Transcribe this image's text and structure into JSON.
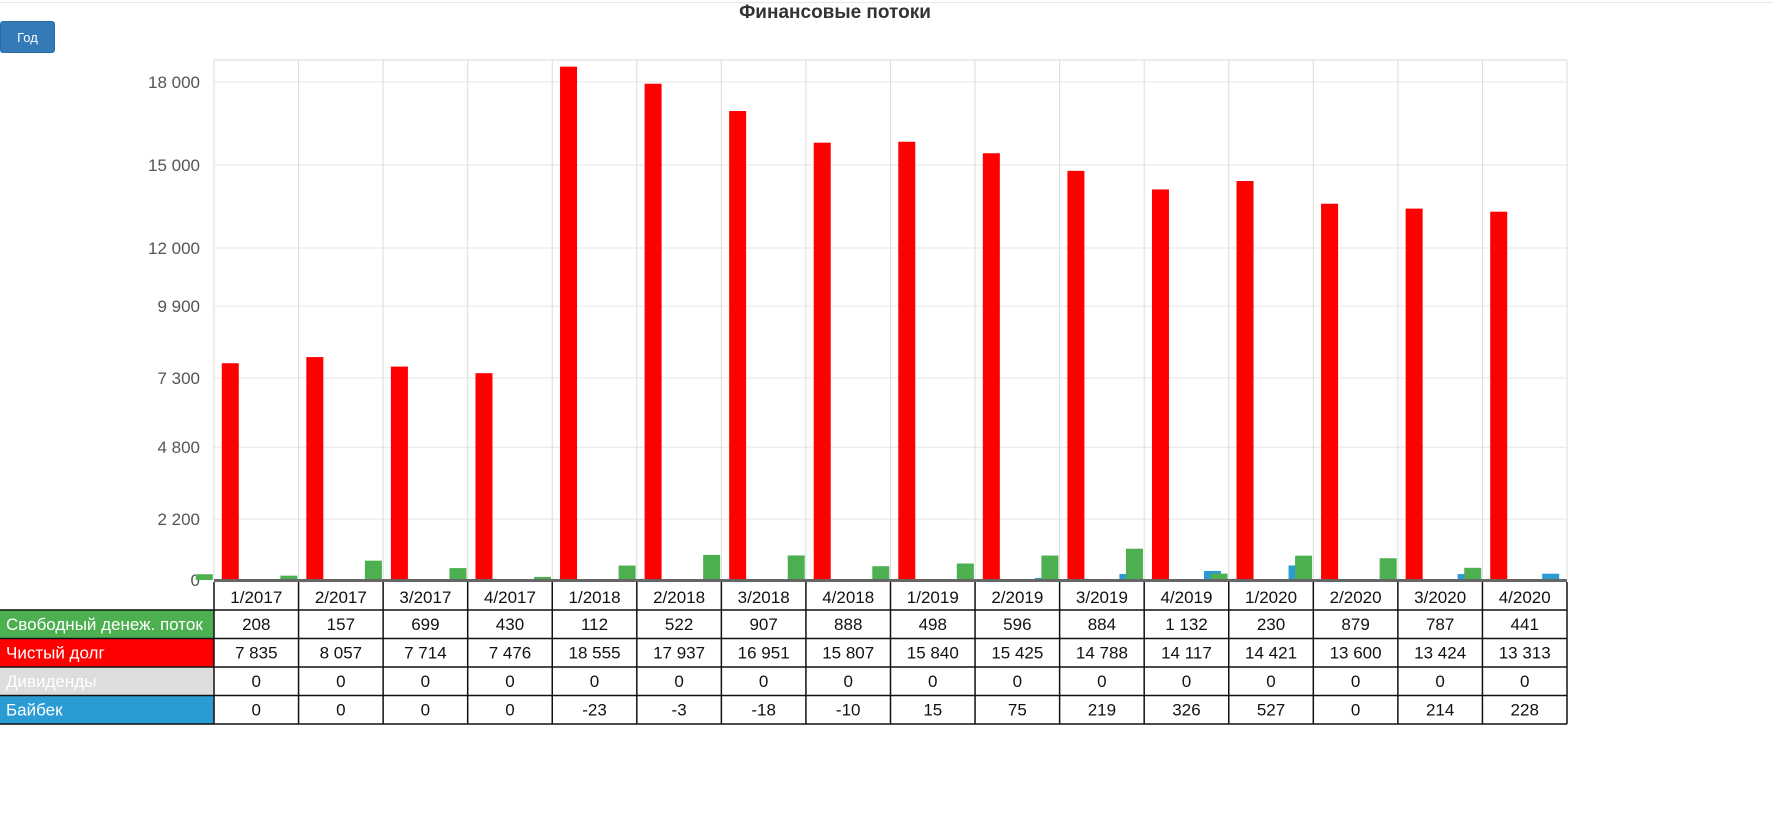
{
  "toolbar": {
    "period_button_label": "Год"
  },
  "chart_data": {
    "type": "bar",
    "title": "Финансовые потоки",
    "xlabel": "",
    "ylabel": "",
    "ylim": [
      0,
      18000
    ],
    "yticks": [
      0,
      2200,
      4800,
      7300,
      9900,
      12000,
      15000,
      18000
    ],
    "ytick_labels": [
      "0",
      "2 200",
      "4 800",
      "7 300",
      "9 900",
      "12 000",
      "15 000",
      "18 000"
    ],
    "grid": true,
    "legend_position": "left of data table",
    "categories": [
      "1/2017",
      "2/2017",
      "3/2017",
      "4/2017",
      "1/2018",
      "2/2018",
      "3/2018",
      "4/2018",
      "1/2019",
      "2/2019",
      "3/2019",
      "4/2019",
      "1/2020",
      "2/2020",
      "3/2020",
      "4/2020"
    ],
    "series": [
      {
        "name": "Свободный денеж. поток",
        "color": "#4caf50",
        "values": [
          208,
          157,
          699,
          430,
          112,
          522,
          907,
          888,
          498,
          596,
          884,
          1132,
          230,
          879,
          787,
          441
        ],
        "labels": [
          "208",
          "157",
          "699",
          "430",
          "112",
          "522",
          "907",
          "888",
          "498",
          "596",
          "884",
          "1 132",
          "230",
          "879",
          "787",
          "441"
        ]
      },
      {
        "name": "Чистый долг",
        "color": "#ff0000",
        "values": [
          7835,
          8057,
          7714,
          7476,
          18555,
          17937,
          16951,
          15807,
          15840,
          15425,
          14788,
          14117,
          14421,
          13600,
          13424,
          13313
        ],
        "labels": [
          "7 835",
          "8 057",
          "7 714",
          "7 476",
          "18 555",
          "17 937",
          "16 951",
          "15 807",
          "15 840",
          "15 425",
          "14 788",
          "14 117",
          "14 421",
          "13 600",
          "13 424",
          "13 313"
        ]
      },
      {
        "name": "Дивиденды",
        "color": "#dddddd",
        "values": [
          0,
          0,
          0,
          0,
          0,
          0,
          0,
          0,
          0,
          0,
          0,
          0,
          0,
          0,
          0,
          0
        ],
        "labels": [
          "0",
          "0",
          "0",
          "0",
          "0",
          "0",
          "0",
          "0",
          "0",
          "0",
          "0",
          "0",
          "0",
          "0",
          "0",
          "0"
        ]
      },
      {
        "name": "Байбек",
        "color": "#2b9bd3",
        "values": [
          0,
          0,
          0,
          0,
          -23,
          -3,
          -18,
          -10,
          15,
          75,
          219,
          326,
          527,
          0,
          214,
          228
        ],
        "labels": [
          "0",
          "0",
          "0",
          "0",
          "-23",
          "-3",
          "-18",
          "-10",
          "15",
          "75",
          "219",
          "326",
          "527",
          "0",
          "214",
          "228"
        ]
      }
    ]
  }
}
